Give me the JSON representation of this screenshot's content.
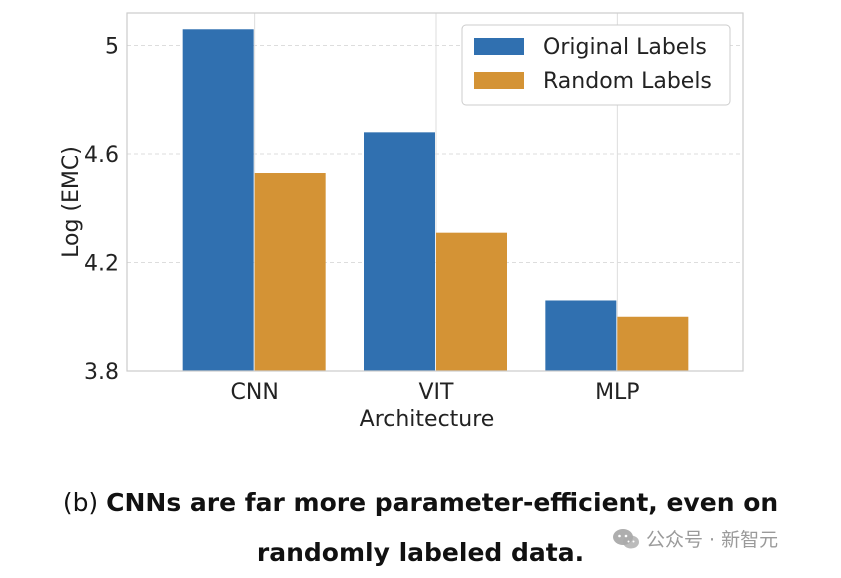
{
  "chart_data": {
    "type": "bar",
    "categories": [
      "CNN",
      "VIT",
      "MLP"
    ],
    "series": [
      {
        "name": "Original Labels",
        "values": [
          5.06,
          4.68,
          4.06
        ],
        "color": "#3070b0"
      },
      {
        "name": "Random Labels",
        "values": [
          4.53,
          4.31,
          4.0
        ],
        "color": "#d49335"
      }
    ],
    "xlabel": "Architecture",
    "ylabel": "Log (EMC)",
    "ylim": [
      3.8,
      5.12
    ],
    "yticks": [
      3.8,
      4.2,
      4.6,
      5.0
    ],
    "ytick_labels": [
      "3.8",
      "4.2",
      "4.6",
      "5"
    ],
    "grid": true,
    "legend": "top-right"
  },
  "caption": {
    "prefix": "(b) ",
    "text": "CNNs are far more parameter-efficient, even on randomly labeled data."
  },
  "watermark": {
    "text": "公众号 · 新智元"
  },
  "colors": {
    "grid": "#dddddd",
    "axes_border": "#cccccc",
    "text": "#222222"
  }
}
